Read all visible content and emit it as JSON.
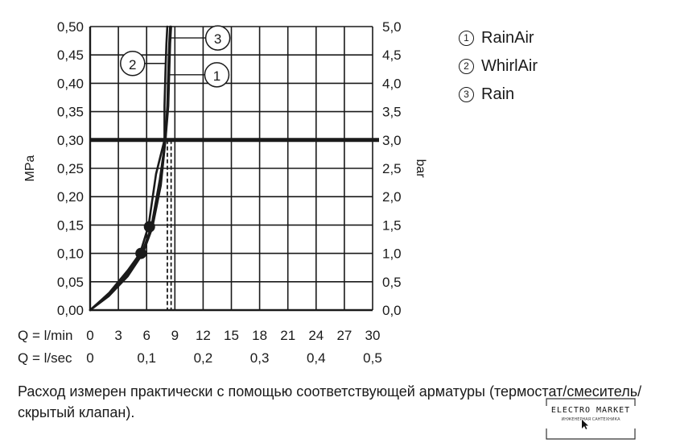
{
  "chart_data": {
    "type": "line",
    "y_left": {
      "label": "MPa",
      "range": [
        0,
        0.5
      ],
      "ticks": [
        "0,00",
        "0,05",
        "0,10",
        "0,15",
        "0,20",
        "0,25",
        "0,30",
        "0,35",
        "0,40",
        "0,45",
        "0,50"
      ]
    },
    "y_right": {
      "label": "bar",
      "range": [
        0,
        5
      ],
      "ticks": [
        "0,0",
        "0,5",
        "1,0",
        "1,5",
        "2,0",
        "2,5",
        "3,0",
        "3,5",
        "4,0",
        "4,5",
        "5,0"
      ]
    },
    "x_lmin": {
      "label": "Q = l/min",
      "range": [
        0,
        30
      ],
      "ticks": [
        "0",
        "3",
        "6",
        "9",
        "12",
        "15",
        "18",
        "21",
        "24",
        "27",
        "30"
      ]
    },
    "x_lsec": {
      "label": "Q = l/sec",
      "ticks": [
        {
          "label": "0",
          "at": 0
        },
        {
          "label": "0,1",
          "at": 6
        },
        {
          "label": "0,2",
          "at": 12
        },
        {
          "label": "0,3",
          "at": 18
        },
        {
          "label": "0,4",
          "at": 24
        },
        {
          "label": "0,5",
          "at": 30
        }
      ]
    },
    "grid": true,
    "reference_line": {
      "y": 0.3
    },
    "series": [
      {
        "name": "RainAir",
        "id": "1",
        "x": [
          0,
          2,
          4,
          5.6,
          6.6,
          7.5,
          8.0,
          8.2,
          8.3,
          8.4,
          8.5
        ],
        "y": [
          0,
          0.025,
          0.06,
          0.1,
          0.145,
          0.22,
          0.3,
          0.36,
          0.42,
          0.47,
          0.5
        ]
      },
      {
        "name": "WhirlAir",
        "id": "2",
        "x": [
          0,
          2,
          4,
          5.3,
          6.2,
          7.0,
          7.9,
          7.9,
          8.0,
          8.1,
          8.2
        ],
        "y": [
          0,
          0.03,
          0.07,
          0.1,
          0.148,
          0.24,
          0.3,
          0.36,
          0.42,
          0.47,
          0.5
        ]
      },
      {
        "name": "Rain",
        "id": "3",
        "x": [
          0,
          2,
          4,
          5.5,
          6.5,
          7.4,
          8.0,
          8.3,
          8.4,
          8.5,
          8.6
        ],
        "y": [
          0,
          0.028,
          0.065,
          0.1,
          0.147,
          0.23,
          0.3,
          0.36,
          0.42,
          0.47,
          0.5
        ]
      }
    ],
    "markers": [
      {
        "x": 5.4,
        "y": 0.1
      },
      {
        "x": 6.3,
        "y": 0.147
      }
    ],
    "dashed_lines_x": [
      8.2,
      8.6
    ],
    "callouts": [
      {
        "id": "3",
        "x": 8.6,
        "y": 0.48
      },
      {
        "id": "2",
        "x": 8.1,
        "y": 0.435
      },
      {
        "id": "1",
        "x": 8.5,
        "y": 0.415
      }
    ]
  },
  "legend": [
    {
      "num": "1",
      "label": "RainAir"
    },
    {
      "num": "2",
      "label": "WhirlAir"
    },
    {
      "num": "3",
      "label": "Rain"
    }
  ],
  "caption": "Расход измерен практически с помощью соответствующей арматуры (термостат/смеситель/скрытый клапан).",
  "logo": {
    "title": "ELECTRO MARKET",
    "subtitle": "ИНЖЕНЕРНАЯ САНТЕХНИКА"
  },
  "colors": {
    "ink": "#1a1a1a",
    "background": "#ffffff"
  }
}
